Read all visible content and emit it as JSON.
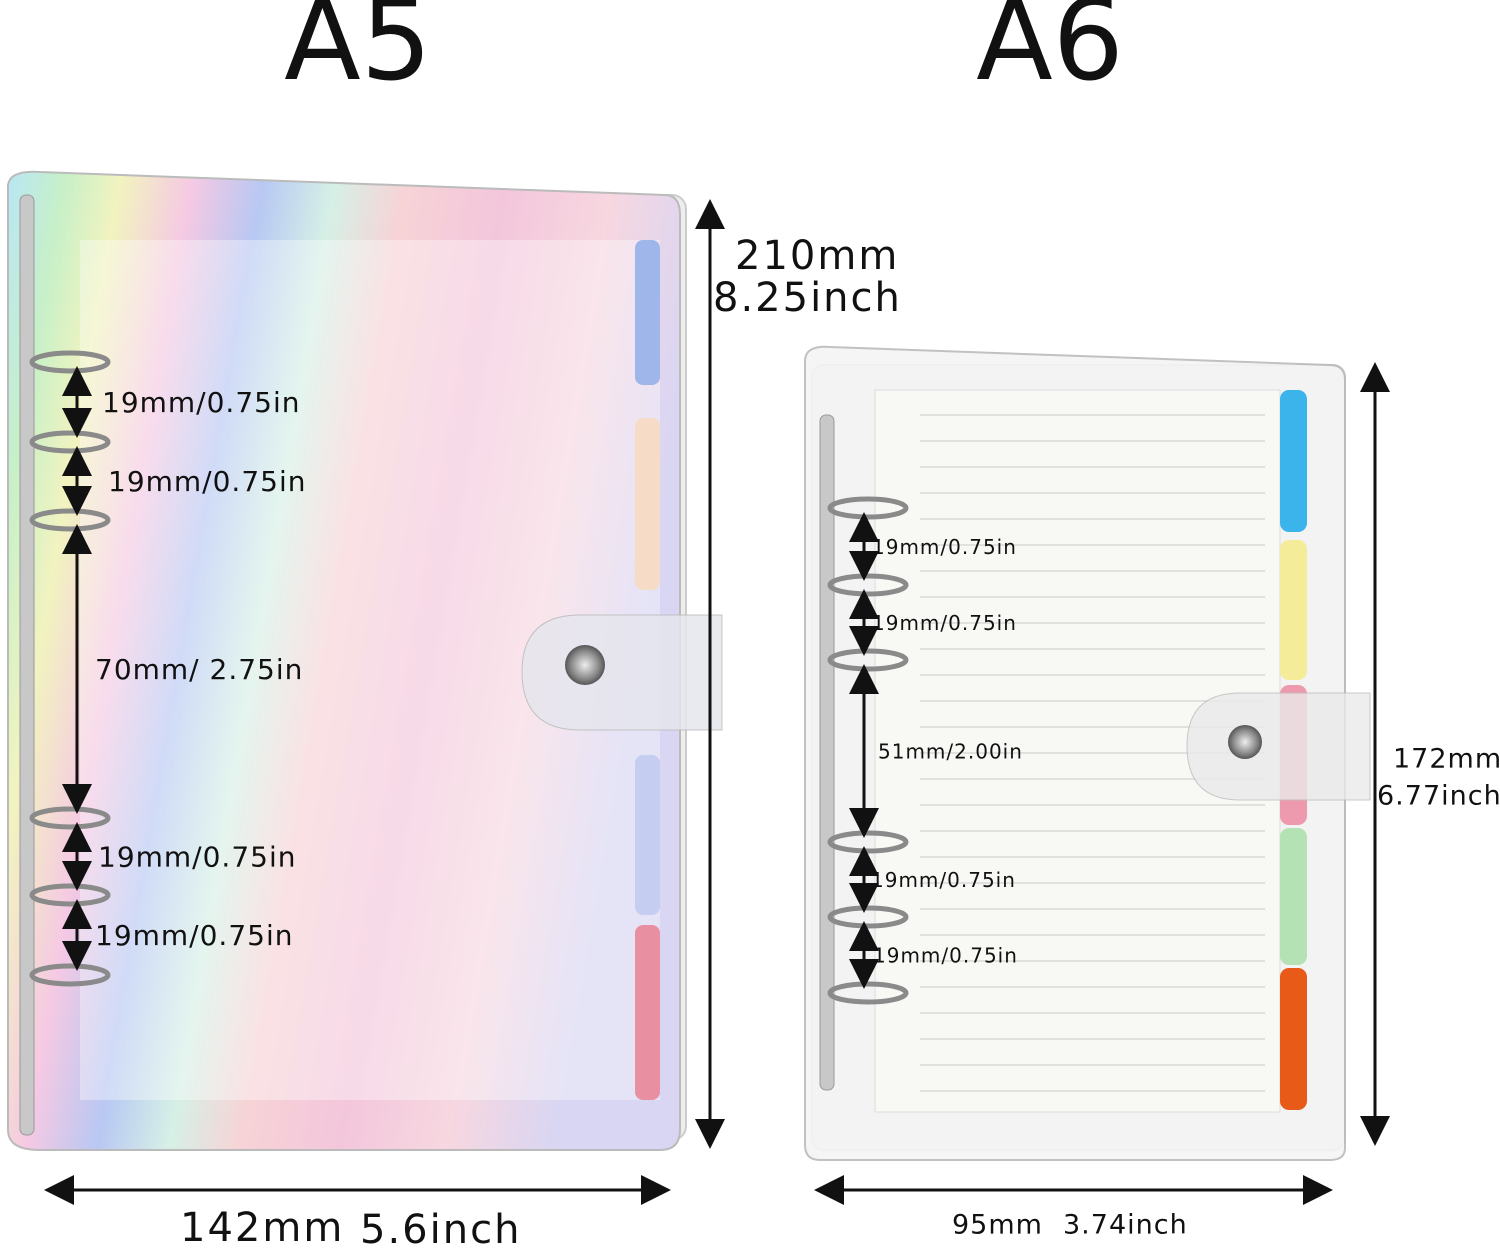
{
  "a5": {
    "title": "A5",
    "height_mm": "210mm",
    "height_in": "8.25inch",
    "width_mm": "142mm",
    "width_in": "5.6inch",
    "ring_spacings": [
      "19mm/0.75in",
      "19mm/0.75in",
      "70mm/ 2.75in",
      "19mm/0.75in",
      "19mm/0.75in"
    ]
  },
  "a6": {
    "title": "A6",
    "height_mm": "172mm",
    "height_in": "6.77inch",
    "width_mm": "95mm",
    "width_in": "3.74inch",
    "ring_spacings": [
      "19mm/0.75in",
      "19mm/0.75in",
      "51mm/2.00in",
      "19mm/0.75in",
      "19mm/0.75in"
    ]
  }
}
